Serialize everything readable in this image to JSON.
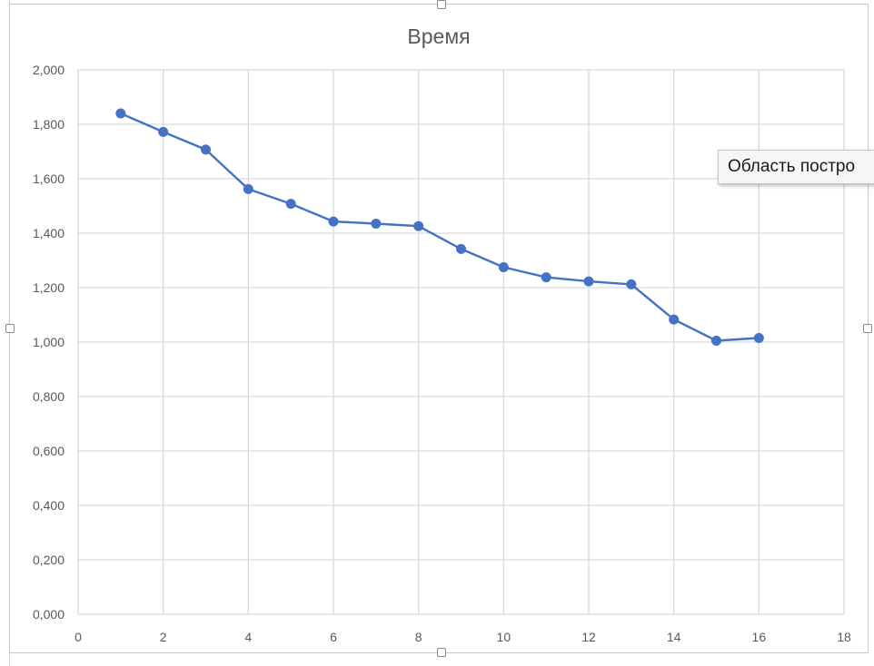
{
  "tooltip": {
    "text": "Область постро"
  },
  "chart_data": {
    "type": "scatter",
    "mode": "lines+markers",
    "title": "Время",
    "xlabel": "",
    "ylabel": "",
    "xlim": [
      0,
      18
    ],
    "ylim": [
      0,
      2
    ],
    "x_ticks": [
      "0",
      "2",
      "4",
      "6",
      "8",
      "10",
      "12",
      "14",
      "16",
      "18"
    ],
    "y_ticks": [
      "0,000",
      "0,200",
      "0,400",
      "0,600",
      "0,800",
      "1,000",
      "1,200",
      "1,400",
      "1,600",
      "1,800",
      "2,000"
    ],
    "grid": true,
    "legend": "none",
    "series": [
      {
        "color": "#4472c4",
        "x": [
          1,
          2,
          3,
          4,
          5,
          6,
          7,
          8,
          9,
          10,
          11,
          12,
          13,
          14,
          15,
          16
        ],
        "y": [
          1.84,
          1.772,
          1.707,
          1.562,
          1.508,
          1.443,
          1.435,
          1.426,
          1.342,
          1.275,
          1.238,
          1.223,
          1.212,
          1.083,
          1.005,
          1.015
        ]
      }
    ]
  }
}
